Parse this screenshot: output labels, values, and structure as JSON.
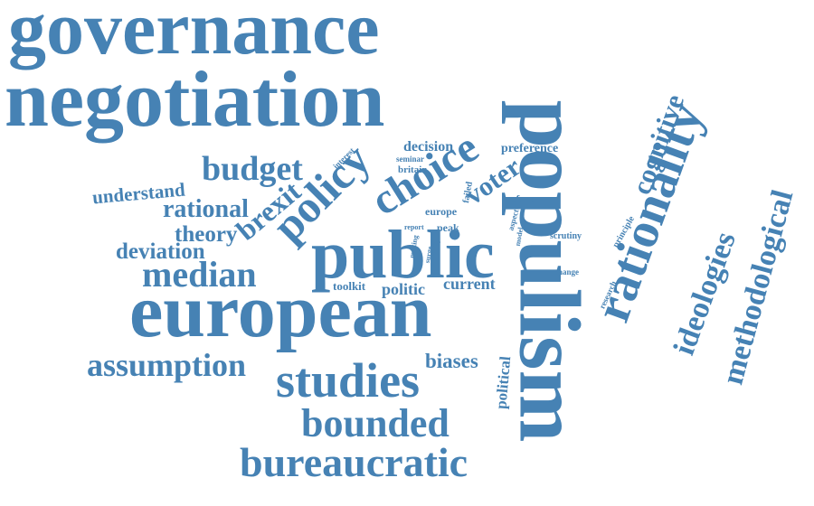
{
  "color": "#4682b4",
  "words": {
    "governance": "governance",
    "negotiation": "negotiation",
    "populism": "populism",
    "european": "european",
    "public": "public",
    "rationality": "rationality",
    "policy": "policy",
    "choice": "choice",
    "studies": "studies",
    "bounded": "bounded",
    "bureaucratic": "bureaucratic",
    "median": "median",
    "budget": "budget",
    "ideologies": "ideologies",
    "methodological": "methodological",
    "cognitive": "cognitive",
    "assumption": "assumption",
    "brexit": "brexit",
    "voter": "voter",
    "rational": "rational",
    "understand": "understand",
    "theory": "theory",
    "deviation": "deviation",
    "biases": "biases",
    "political": "political",
    "current": "current",
    "politic": "politic",
    "toolkit": "toolkit",
    "decision": "decision",
    "preference": "preference",
    "reform": "reform",
    "seminar": "seminar",
    "britain": "britain",
    "interest": "interest",
    "europe": "europe",
    "failed": "failed",
    "peak": "peak",
    "report": "report",
    "making": "making",
    "surge": "surge",
    "ig": "ig",
    "aspect": "aspect",
    "model": "model",
    "scrutiny": "scrutiny",
    "principle": "principle",
    "research": "research",
    "change": "change"
  }
}
